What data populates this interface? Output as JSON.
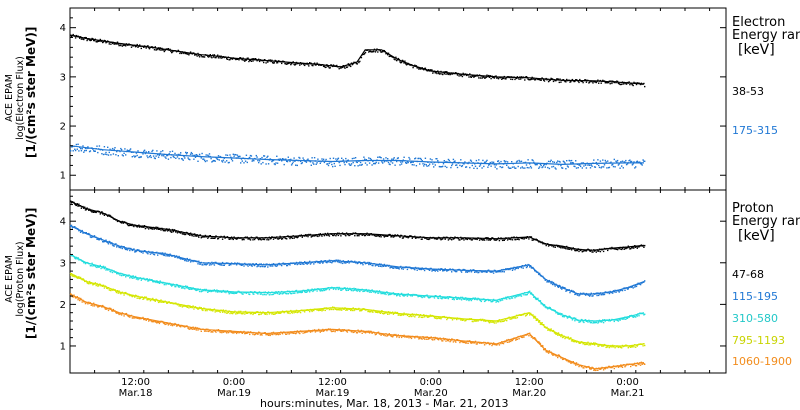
{
  "x_axis": {
    "title": "hours:minutes, Mar. 18, 2013 - Mar. 21, 2013",
    "ticks": [
      {
        "t": 12,
        "time": "12:00",
        "date": "Mar.18"
      },
      {
        "t": 24,
        "time": "0:00",
        "date": "Mar.19"
      },
      {
        "t": 36,
        "time": "12:00",
        "date": "Mar.19"
      },
      {
        "t": 48,
        "time": "0:00",
        "date": "Mar.20"
      },
      {
        "t": 60,
        "time": "12:00",
        "date": "Mar.20"
      },
      {
        "t": 72,
        "time": "0:00",
        "date": "Mar.21"
      }
    ],
    "range_hours_from_mar18_0000": [
      4,
      84
    ]
  },
  "electron_panel": {
    "ylabel": [
      "ACE EPAM",
      "log(Electron Flux)",
      "[1/(cm²s ster MeV)]"
    ],
    "legend_title": [
      "Electron",
      "Energy range"
    ],
    "legend_unit": "[keV]",
    "yticks": [
      "1",
      "2",
      "3",
      "4"
    ]
  },
  "proton_panel": {
    "ylabel": [
      "ACE EPAM",
      "log(Proton Flux)",
      "[1/(cm²s ster MeV)]"
    ],
    "legend_title": [
      "Proton",
      "Energy range"
    ],
    "legend_unit": "[keV]",
    "yticks": [
      "1",
      "2",
      "3",
      "4"
    ]
  },
  "chart_data": [
    {
      "type": "scatter",
      "title": "",
      "xlabel": "hours:minutes, Mar. 18, 2013 - Mar. 21, 2013",
      "ylabel": "ACE EPAM log(Electron Flux) [1/(cm²s ster MeV)]",
      "x_units": "hours since Mar. 18, 2013 0:00",
      "xlim": [
        4,
        84
      ],
      "ylim": [
        0.7,
        4.4
      ],
      "legend_position": "right",
      "grid": false,
      "series": [
        {
          "name": "38-53",
          "color": "#000000",
          "x": [
            4,
            6,
            10,
            14,
            18,
            20,
            22,
            24,
            28,
            32,
            34,
            36,
            37,
            39,
            40,
            42,
            44,
            46,
            48,
            52,
            56,
            60,
            64,
            68,
            72,
            74
          ],
          "y": [
            3.85,
            3.78,
            3.68,
            3.6,
            3.5,
            3.45,
            3.42,
            3.38,
            3.33,
            3.28,
            3.26,
            3.22,
            3.2,
            3.3,
            3.55,
            3.55,
            3.35,
            3.22,
            3.12,
            3.05,
            3.0,
            2.98,
            2.93,
            2.92,
            2.88,
            2.85
          ]
        },
        {
          "name": "175-315",
          "color": "#1f77d4",
          "x": [
            4,
            8,
            12,
            16,
            20,
            24,
            28,
            32,
            36,
            40,
            44,
            48,
            52,
            56,
            60,
            64,
            68,
            72,
            74
          ],
          "y": [
            1.6,
            1.52,
            1.47,
            1.42,
            1.38,
            1.35,
            1.32,
            1.3,
            1.28,
            1.3,
            1.3,
            1.27,
            1.25,
            1.23,
            1.25,
            1.22,
            1.24,
            1.25,
            1.25
          ]
        }
      ]
    },
    {
      "type": "scatter",
      "title": "",
      "xlabel": "hours:minutes, Mar. 18, 2013 - Mar. 21, 2013",
      "ylabel": "ACE EPAM log(Proton Flux) [1/(cm²s ster MeV)]",
      "x_units": "hours since Mar. 18, 2013 0:00",
      "xlim": [
        4,
        84
      ],
      "ylim": [
        0.35,
        4.75
      ],
      "legend_position": "right",
      "grid": false,
      "series": [
        {
          "name": "47-68",
          "color": "#000000",
          "x": [
            4,
            6,
            8,
            10,
            12,
            16,
            20,
            24,
            28,
            32,
            36,
            40,
            44,
            48,
            52,
            56,
            60,
            62,
            64,
            66,
            68,
            70,
            72,
            74
          ],
          "y": [
            4.48,
            4.3,
            4.2,
            4.0,
            3.9,
            3.8,
            3.65,
            3.6,
            3.6,
            3.65,
            3.7,
            3.7,
            3.65,
            3.6,
            3.6,
            3.58,
            3.62,
            3.45,
            3.4,
            3.32,
            3.3,
            3.35,
            3.38,
            3.42
          ]
        },
        {
          "name": "115-195",
          "color": "#1f77d4",
          "x": [
            4,
            6,
            8,
            10,
            12,
            16,
            20,
            24,
            28,
            32,
            36,
            40,
            44,
            48,
            52,
            56,
            60,
            62,
            64,
            66,
            68,
            70,
            72,
            74
          ],
          "y": [
            3.9,
            3.7,
            3.55,
            3.4,
            3.3,
            3.2,
            3.0,
            2.98,
            2.95,
            3.0,
            3.05,
            3.0,
            2.9,
            2.85,
            2.82,
            2.8,
            2.95,
            2.6,
            2.4,
            2.25,
            2.25,
            2.3,
            2.4,
            2.55
          ]
        },
        {
          "name": "310-580",
          "color": "#22dddd",
          "x": [
            4,
            6,
            8,
            10,
            12,
            16,
            20,
            24,
            28,
            32,
            36,
            40,
            44,
            48,
            52,
            56,
            60,
            62,
            64,
            66,
            68,
            70,
            72,
            74
          ],
          "y": [
            3.2,
            3.0,
            2.9,
            2.75,
            2.65,
            2.5,
            2.35,
            2.3,
            2.28,
            2.32,
            2.4,
            2.35,
            2.25,
            2.2,
            2.15,
            2.1,
            2.3,
            1.95,
            1.75,
            1.62,
            1.6,
            1.62,
            1.7,
            1.8
          ]
        },
        {
          "name": "795-1193",
          "color": "#d4e600",
          "x": [
            4,
            6,
            8,
            10,
            12,
            16,
            20,
            24,
            28,
            32,
            36,
            40,
            44,
            48,
            52,
            56,
            60,
            62,
            64,
            66,
            68,
            70,
            72,
            74
          ],
          "y": [
            2.75,
            2.55,
            2.45,
            2.3,
            2.2,
            2.05,
            1.9,
            1.82,
            1.8,
            1.85,
            1.92,
            1.88,
            1.78,
            1.72,
            1.65,
            1.6,
            1.8,
            1.45,
            1.25,
            1.1,
            1.05,
            1.0,
            1.0,
            1.05
          ]
        },
        {
          "name": "1060-1900",
          "color": "#f28c1c",
          "x": [
            4,
            6,
            8,
            10,
            12,
            16,
            20,
            24,
            28,
            32,
            36,
            40,
            44,
            48,
            52,
            56,
            60,
            62,
            64,
            66,
            68,
            70,
            72,
            74
          ],
          "y": [
            2.25,
            2.05,
            1.95,
            1.8,
            1.7,
            1.55,
            1.4,
            1.35,
            1.3,
            1.35,
            1.4,
            1.35,
            1.25,
            1.2,
            1.12,
            1.05,
            1.3,
            0.9,
            0.72,
            0.55,
            0.45,
            0.5,
            0.55,
            0.6
          ]
        }
      ]
    }
  ]
}
